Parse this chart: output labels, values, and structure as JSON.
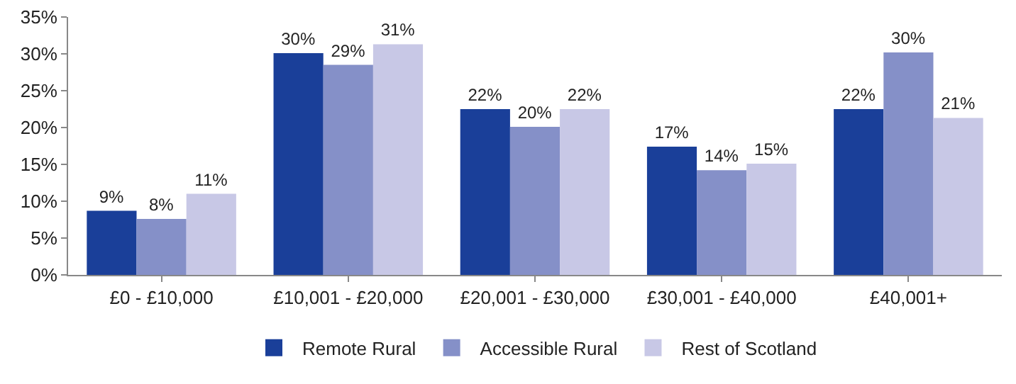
{
  "chart_data": {
    "type": "bar",
    "categories": [
      "£0 - £10,000",
      "£10,001 - £20,000",
      "£20,001 - £30,000",
      "£30,001 - £40,000",
      "£40,001+"
    ],
    "series": [
      {
        "name": "Remote Rural",
        "color": "#1a3f99",
        "values": [
          8.7,
          30.1,
          22.5,
          17.4,
          22.5
        ],
        "value_labels": [
          "9%",
          "30%",
          "22%",
          "17%",
          "22%"
        ]
      },
      {
        "name": "Accessible Rural",
        "color": "#8590c8",
        "values": [
          7.6,
          28.5,
          20.1,
          14.2,
          30.2
        ],
        "value_labels": [
          "8%",
          "29%",
          "20%",
          "14%",
          "30%"
        ]
      },
      {
        "name": "Rest of Scotland",
        "color": "#c8c8e6",
        "values": [
          11.0,
          31.3,
          22.5,
          15.1,
          21.3
        ],
        "value_labels": [
          "11%",
          "31%",
          "22%",
          "15%",
          "21%"
        ]
      }
    ],
    "ylim": [
      0,
      35
    ],
    "yticks": [
      {
        "value": 0,
        "label": "0%"
      },
      {
        "value": 5,
        "label": "5%"
      },
      {
        "value": 10,
        "label": "10%"
      },
      {
        "value": 15,
        "label": "15%"
      },
      {
        "value": 20,
        "label": "20%"
      },
      {
        "value": 25,
        "label": "25%"
      },
      {
        "value": 30,
        "label": "30%"
      },
      {
        "value": 35,
        "label": "35%"
      }
    ],
    "grid": false,
    "legend": "bottom"
  }
}
